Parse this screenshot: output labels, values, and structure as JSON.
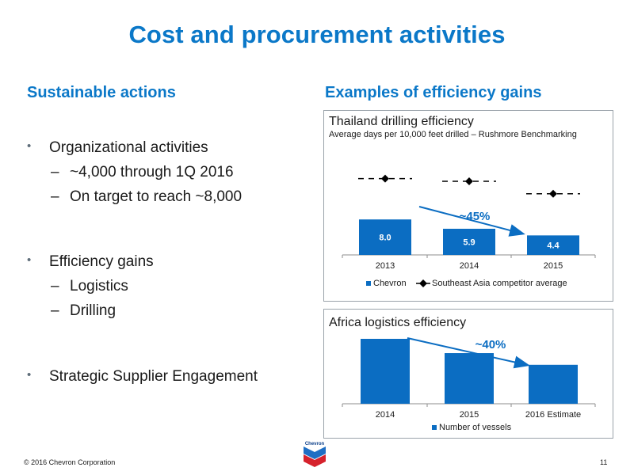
{
  "title": "Cost and procurement activities",
  "left": {
    "heading": "Sustainable actions",
    "bullets": [
      {
        "text": "Organizational activities",
        "subs": [
          "~4,000 through 1Q 2016",
          "On target to reach ~8,000"
        ]
      },
      {
        "text": "Efficiency gains",
        "subs": [
          "Logistics",
          "Drilling"
        ]
      },
      {
        "text": "Strategic Supplier Engagement",
        "subs": []
      }
    ],
    "bullet_char": "•",
    "dash_char": "–"
  },
  "right": {
    "heading": "Examples of efficiency gains"
  },
  "chart_data": [
    {
      "type": "bar",
      "title": "Thailand drilling efficiency",
      "subtitle": "Average days per 10,000 feet drilled – Rushmore Benchmarking",
      "categories": [
        "2013",
        "2014",
        "2015"
      ],
      "series": [
        {
          "name": "Chevron",
          "type": "bar",
          "values": [
            8.0,
            5.9,
            4.4
          ],
          "labels": [
            "8.0",
            "5.9",
            "4.4"
          ],
          "color": "#0b6dc2"
        },
        {
          "name": "Southeast Asia competitor average",
          "type": "marker",
          "values": [
            17.2,
            16.6,
            13.8
          ],
          "color": "#000000"
        }
      ],
      "annotation": "~45%",
      "legend_position": "bottom",
      "grid": false
    },
    {
      "type": "bar",
      "title": "Africa logistics efficiency",
      "categories": [
        "2014",
        "2015",
        "2016 Estimate"
      ],
      "series": [
        {
          "name": "Number of vessels",
          "values": [
            100,
            78,
            60
          ],
          "color": "#0b6dc2"
        }
      ],
      "annotation": "~40%",
      "legend_position": "bottom",
      "grid": false
    }
  ],
  "footer": {
    "copyright": "© 2016 Chevron Corporation",
    "page": "11",
    "logo_text": "Chevron"
  }
}
